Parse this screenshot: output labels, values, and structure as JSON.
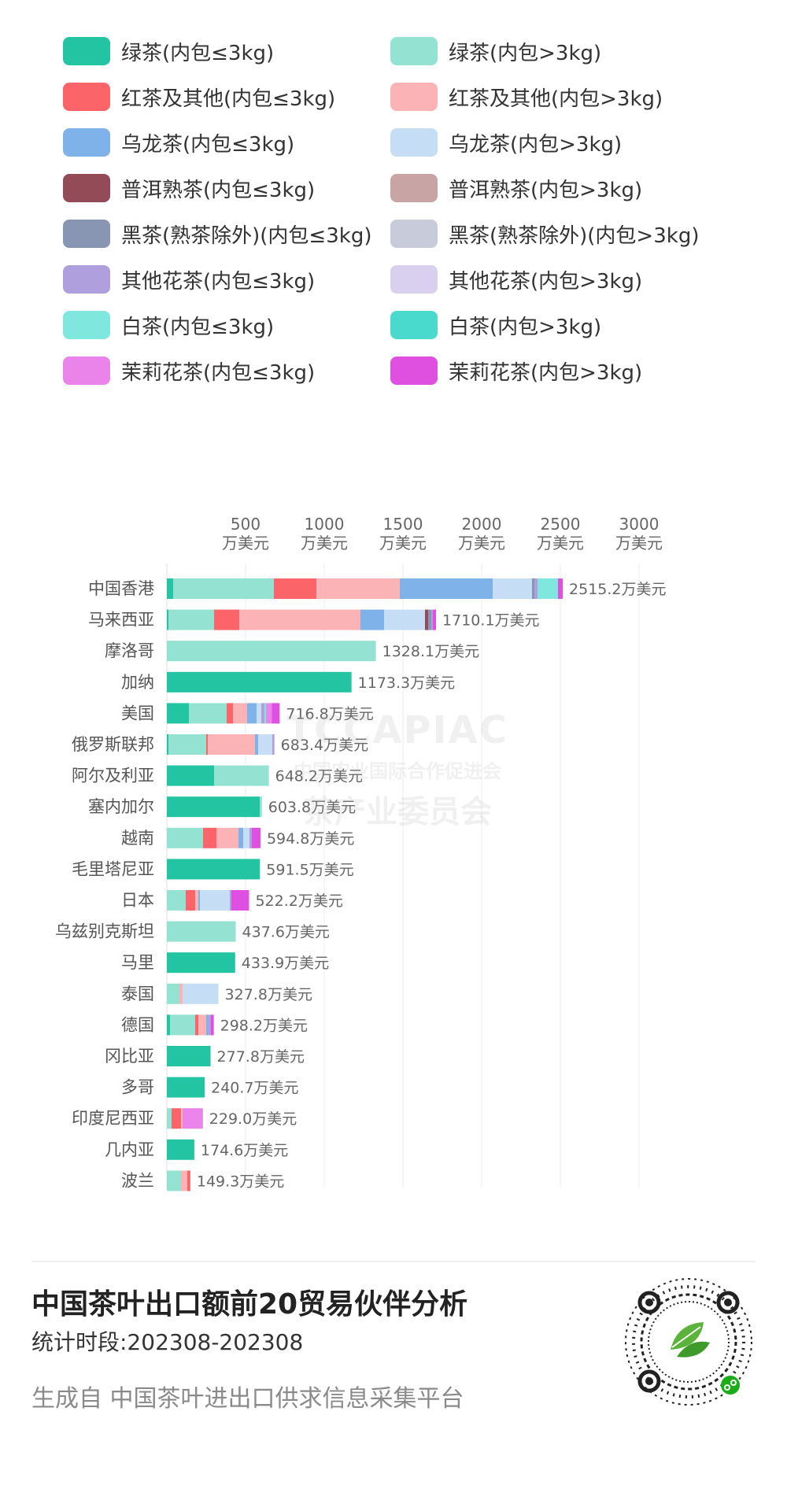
{
  "colors": {
    "green_le": "#23c4a2",
    "green_gt": "#93e2d2",
    "black_le": "#fb6468",
    "black_gt": "#fcb3b5",
    "oolong_le": "#7fb2e8",
    "oolong_gt": "#c6def5",
    "puer_le": "#934b57",
    "puer_gt": "#c9a4a4",
    "dark_le": "#8896b3",
    "dark_gt": "#c8ccda",
    "flower_le": "#b09fdd",
    "flower_gt": "#d9d0f0",
    "white_le": "#7fe7dd",
    "white_gt": "#49dacd",
    "jasmine_le": "#ea84ea",
    "jasmine_gt": "#df4fe0"
  },
  "legend": [
    {
      "key": "green_le",
      "label": "绿茶(内包≤3kg)"
    },
    {
      "key": "green_gt",
      "label": "绿茶(内包>3kg)"
    },
    {
      "key": "black_le",
      "label": "红茶及其他(内包≤3kg)"
    },
    {
      "key": "black_gt",
      "label": "红茶及其他(内包>3kg)"
    },
    {
      "key": "oolong_le",
      "label": "乌龙茶(内包≤3kg)"
    },
    {
      "key": "oolong_gt",
      "label": "乌龙茶(内包>3kg)"
    },
    {
      "key": "puer_le",
      "label": "普洱熟茶(内包≤3kg)"
    },
    {
      "key": "puer_gt",
      "label": "普洱熟茶(内包>3kg)"
    },
    {
      "key": "dark_le",
      "label": "黑茶(熟茶除外)(内包≤3kg)"
    },
    {
      "key": "dark_gt",
      "label": "黑茶(熟茶除外)(内包>3kg)"
    },
    {
      "key": "flower_le",
      "label": "其他花茶(内包≤3kg)"
    },
    {
      "key": "flower_gt",
      "label": "其他花茶(内包>3kg)"
    },
    {
      "key": "white_le",
      "label": "白茶(内包≤3kg)"
    },
    {
      "key": "white_gt",
      "label": "白茶(内包>3kg)"
    },
    {
      "key": "jasmine_le",
      "label": "茉莉花茶(内包≤3kg)"
    },
    {
      "key": "jasmine_gt",
      "label": "茉莉花茶(内包>3kg)"
    }
  ],
  "chart_data": {
    "type": "bar",
    "orientation": "horizontal",
    "stacked": true,
    "xlim": [
      0,
      3000
    ],
    "x_ticks": [
      500,
      1000,
      1500,
      2000,
      2500,
      3000
    ],
    "x_tick_unit": "万美元",
    "value_suffix": "万美元",
    "grid": true,
    "rows": [
      {
        "country": "中国香港",
        "total_label": "2515.2",
        "segments": [
          [
            "green_le",
            40
          ],
          [
            "green_gt",
            640
          ],
          [
            "black_le",
            270
          ],
          [
            "black_gt",
            530
          ],
          [
            "oolong_le",
            590
          ],
          [
            "oolong_gt",
            250
          ],
          [
            "dark_le",
            15
          ],
          [
            "flower_le",
            20
          ],
          [
            "white_le",
            130
          ],
          [
            "jasmine_gt",
            30.2
          ]
        ]
      },
      {
        "country": "马来西亚",
        "total_label": "1710.1",
        "segments": [
          [
            "green_le",
            10
          ],
          [
            "green_gt",
            290
          ],
          [
            "black_le",
            160
          ],
          [
            "black_gt",
            770
          ],
          [
            "oolong_le",
            150
          ],
          [
            "oolong_gt",
            260
          ],
          [
            "puer_le",
            20
          ],
          [
            "dark_le",
            20
          ],
          [
            "flower_le",
            10
          ],
          [
            "jasmine_gt",
            20.1
          ]
        ]
      },
      {
        "country": "摩洛哥",
        "total_label": "1328.1",
        "segments": [
          [
            "green_gt",
            1328.1
          ]
        ]
      },
      {
        "country": "加纳",
        "total_label": "1173.3",
        "segments": [
          [
            "green_le",
            1173.3
          ]
        ]
      },
      {
        "country": "美国",
        "total_label": "716.8",
        "segments": [
          [
            "green_le",
            140
          ],
          [
            "green_gt",
            240
          ],
          [
            "black_le",
            40
          ],
          [
            "black_gt",
            90
          ],
          [
            "oolong_le",
            60
          ],
          [
            "oolong_gt",
            30
          ],
          [
            "flower_le",
            20
          ],
          [
            "white_le",
            10
          ],
          [
            "jasmine_le",
            36.8
          ],
          [
            "jasmine_gt",
            50
          ]
        ]
      },
      {
        "country": "俄罗斯联邦",
        "total_label": "683.4",
        "segments": [
          [
            "green_le",
            10
          ],
          [
            "green_gt",
            240
          ],
          [
            "black_le",
            10
          ],
          [
            "black_gt",
            300
          ],
          [
            "oolong_le",
            20
          ],
          [
            "oolong_gt",
            90
          ],
          [
            "flower_le",
            13.4
          ]
        ]
      },
      {
        "country": "阿尔及利亚",
        "total_label": "648.2",
        "segments": [
          [
            "green_le",
            300
          ],
          [
            "green_gt",
            348.2
          ]
        ]
      },
      {
        "country": "塞内加尔",
        "total_label": "603.8",
        "segments": [
          [
            "green_le",
            590
          ],
          [
            "green_gt",
            13.8
          ]
        ]
      },
      {
        "country": "越南",
        "total_label": "594.8",
        "segments": [
          [
            "green_gt",
            230
          ],
          [
            "black_le",
            85
          ],
          [
            "black_gt",
            140
          ],
          [
            "oolong_le",
            30
          ],
          [
            "oolong_gt",
            40
          ],
          [
            "flower_le",
            15
          ],
          [
            "jasmine_gt",
            54.8
          ]
        ]
      },
      {
        "country": "毛里塔尼亚",
        "total_label": "591.5",
        "segments": [
          [
            "green_le",
            591.5
          ]
        ]
      },
      {
        "country": "日本",
        "total_label": "522.2",
        "segments": [
          [
            "green_gt",
            120
          ],
          [
            "black_le",
            60
          ],
          [
            "black_gt",
            20
          ],
          [
            "oolong_le",
            10
          ],
          [
            "oolong_gt",
            190
          ],
          [
            "flower_le",
            10
          ],
          [
            "jasmine_gt",
            112.2
          ]
        ]
      },
      {
        "country": "乌兹别克斯坦",
        "total_label": "437.6",
        "segments": [
          [
            "green_gt",
            437.6
          ]
        ]
      },
      {
        "country": "马里",
        "total_label": "433.9",
        "segments": [
          [
            "green_le",
            433.9
          ]
        ]
      },
      {
        "country": "泰国",
        "total_label": "327.8",
        "segments": [
          [
            "green_gt",
            80
          ],
          [
            "black_gt",
            20
          ],
          [
            "oolong_gt",
            227.8
          ]
        ]
      },
      {
        "country": "德国",
        "total_label": "298.2",
        "segments": [
          [
            "green_le",
            20
          ],
          [
            "green_gt",
            160
          ],
          [
            "black_le",
            20
          ],
          [
            "black_gt",
            50
          ],
          [
            "oolong_le",
            18.2
          ],
          [
            "flower_le",
            10
          ],
          [
            "jasmine_gt",
            20
          ]
        ]
      },
      {
        "country": "冈比亚",
        "total_label": "277.8",
        "segments": [
          [
            "green_le",
            277.8
          ]
        ]
      },
      {
        "country": "多哥",
        "total_label": "240.7",
        "segments": [
          [
            "green_le",
            240.7
          ]
        ]
      },
      {
        "country": "印度尼西亚",
        "total_label": "229.0",
        "segments": [
          [
            "green_gt",
            30
          ],
          [
            "black_le",
            60
          ],
          [
            "black_gt",
            10
          ],
          [
            "jasmine_le",
            129
          ]
        ]
      },
      {
        "country": "几内亚",
        "total_label": "174.6",
        "segments": [
          [
            "green_le",
            174.6
          ]
        ]
      },
      {
        "country": "波兰",
        "total_label": "149.3",
        "segments": [
          [
            "green_gt",
            90
          ],
          [
            "black_gt",
            40
          ],
          [
            "black_le",
            19.3
          ]
        ]
      }
    ]
  },
  "watermark": {
    "logo": "TCCAPIAC",
    "line1": "中国农业国际合作促进会",
    "line2": "茶产业委员会"
  },
  "footer": {
    "title": "中国茶叶出口额前20贸易伙伴分析",
    "period": "统计时段:202308-202308",
    "source": "生成自 中国茶叶进出口供求信息采集平台"
  }
}
